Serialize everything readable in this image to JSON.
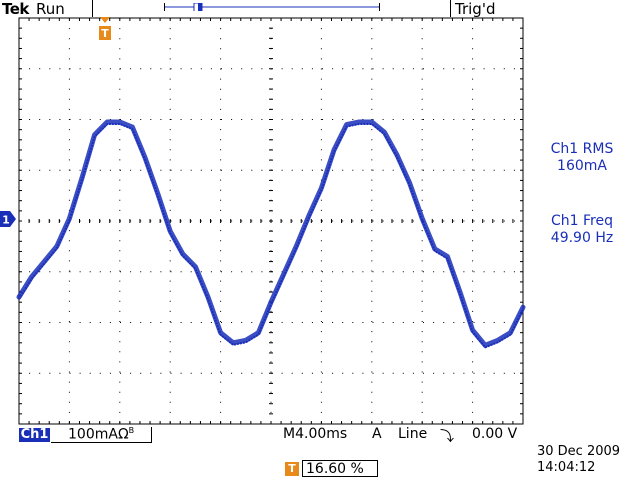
{
  "header": {
    "brand": "Tek",
    "status": "Run",
    "trigger_status": "Trig'd",
    "trigger_marker": "T"
  },
  "readouts": {
    "rms_label": "Ch1 RMS",
    "rms_value": "160mA",
    "freq_label": "Ch1 Freq",
    "freq_value": "49.90 Hz"
  },
  "channel": {
    "name": "Ch1",
    "marker": "1",
    "scale": "100mA",
    "coupling_symbol": "Ω",
    "bw_symbol": "B"
  },
  "timebase": {
    "mode": "M",
    "value": "4.00ms"
  },
  "trigger": {
    "source": "A",
    "type": "Line",
    "slope_symbol": "⤵",
    "level": "0.00 V",
    "icon": "T",
    "position": "16.60 %"
  },
  "datetime": {
    "date": "30 Dec  2009",
    "time": "14:04:12"
  },
  "colors": {
    "trace": "#1a2fb8",
    "marker_orange": "#e88a1a",
    "grid": "#000000"
  },
  "chart_data": {
    "type": "line",
    "xlabel": "",
    "ylabel": "",
    "x_range_ms": [
      0,
      40
    ],
    "y_range_div": [
      -4,
      4
    ],
    "frequency_hz": 49.9,
    "series": [
      {
        "x": [
          0,
          1,
          2,
          3,
          4,
          5,
          6,
          7,
          8,
          9,
          10,
          11,
          12,
          13,
          14,
          15,
          16,
          17,
          18,
          19,
          20,
          21,
          22,
          23,
          24,
          25,
          26,
          27,
          28,
          29,
          30,
          31,
          32,
          33,
          34,
          35,
          36,
          37,
          38,
          39,
          40
        ],
        "y": [
          -1.5,
          -1.1,
          -0.8,
          -0.5,
          0.05,
          0.85,
          1.7,
          1.95,
          1.95,
          1.85,
          1.25,
          0.55,
          -0.2,
          -0.65,
          -0.9,
          -1.5,
          -2.2,
          -2.4,
          -2.35,
          -2.2,
          -1.6,
          -1.05,
          -0.5,
          0.1,
          0.65,
          1.4,
          1.9,
          1.95,
          1.95,
          1.75,
          1.3,
          0.75,
          0.05,
          -0.55,
          -0.7,
          -1.4,
          -2.15,
          -2.45,
          -2.35,
          -2.2,
          -1.7
        ]
      }
    ]
  }
}
